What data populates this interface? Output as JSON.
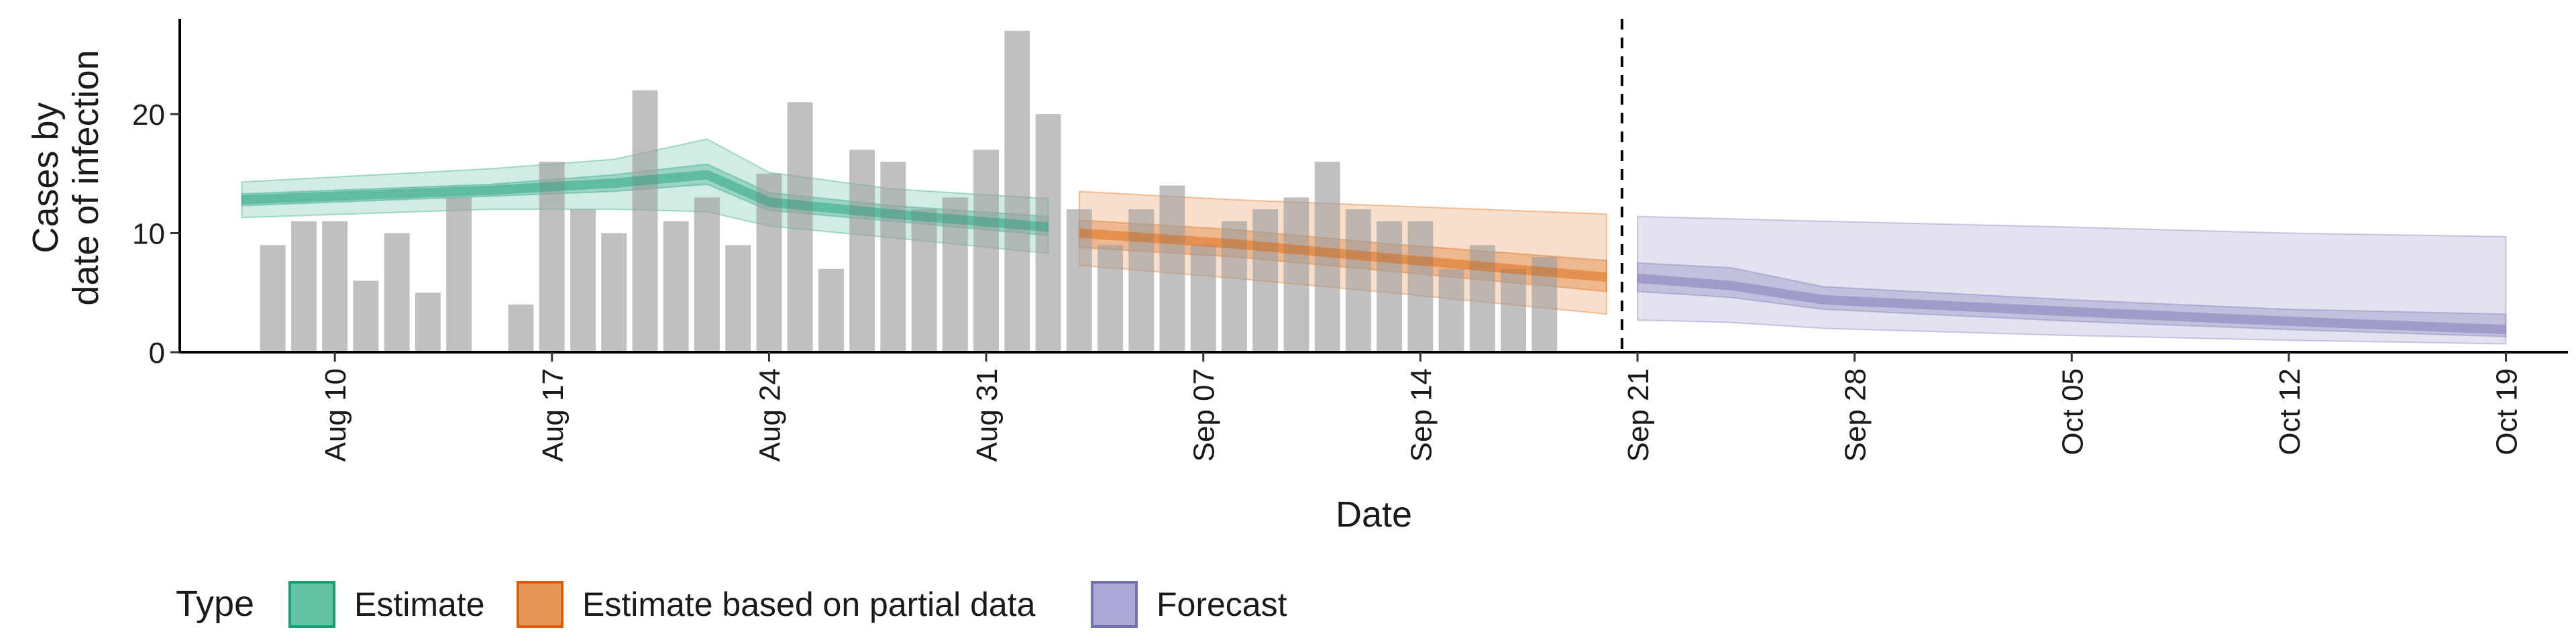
{
  "chart_data": {
    "type": "bar",
    "title": "",
    "xlabel": "Date",
    "ylabel_line1": "Cases by",
    "ylabel_line2": "date of infection",
    "ylim": [
      0,
      28
    ],
    "y_ticks": [
      0,
      10,
      20
    ],
    "x_range": [
      "2020-08-05",
      "2020-10-21"
    ],
    "x_ticks": [
      {
        "date": "2020-08-10",
        "label": "Aug 10"
      },
      {
        "date": "2020-08-17",
        "label": "Aug 17"
      },
      {
        "date": "2020-08-24",
        "label": "Aug 24"
      },
      {
        "date": "2020-08-31",
        "label": "Aug 31"
      },
      {
        "date": "2020-09-07",
        "label": "Sep 07"
      },
      {
        "date": "2020-09-14",
        "label": "Sep 14"
      },
      {
        "date": "2020-09-21",
        "label": "Sep 21"
      },
      {
        "date": "2020-09-28",
        "label": "Sep 28"
      },
      {
        "date": "2020-10-05",
        "label": "Oct 05"
      },
      {
        "date": "2020-10-12",
        "label": "Oct 12"
      },
      {
        "date": "2020-10-19",
        "label": "Oct 19"
      }
    ],
    "forecast_start": "2020-09-20",
    "bars": {
      "start_date": "2020-08-08",
      "values": [
        9,
        11,
        11,
        6,
        10,
        5,
        13,
        0,
        4,
        16,
        12,
        10,
        22,
        11,
        13,
        9,
        15,
        21,
        7,
        17,
        16,
        12,
        13,
        17,
        27,
        20,
        12,
        9,
        12,
        14,
        9,
        11,
        12,
        13,
        16,
        12,
        11,
        11,
        7,
        9,
        7,
        8
      ]
    },
    "legend": {
      "title": "Type",
      "position": "bottom",
      "items": [
        {
          "label": "Estimate",
          "fill": "#66c2a5",
          "stroke": "#1b9e77"
        },
        {
          "label": "Estimate based on partial data",
          "fill": "#e8955a",
          "stroke": "#d95f02"
        },
        {
          "label": "Forecast",
          "fill": "#a9a8d6",
          "stroke": "#7570b3"
        }
      ]
    },
    "series": [
      {
        "type": "Estimate",
        "color": "#1b9e77",
        "points": [
          {
            "date": "2020-08-07",
            "median": 12.8,
            "l50": 12.3,
            "u50": 13.3,
            "l90": 11.3,
            "u90": 14.3
          },
          {
            "date": "2020-08-15",
            "median": 13.6,
            "l50": 13.1,
            "u50": 14.1,
            "l90": 12.0,
            "u90": 15.4
          },
          {
            "date": "2020-08-19",
            "median": 14.2,
            "l50": 13.5,
            "u50": 14.9,
            "l90": 12.0,
            "u90": 16.2
          },
          {
            "date": "2020-08-22",
            "median": 14.9,
            "l50": 14.1,
            "u50": 15.8,
            "l90": 11.8,
            "u90": 17.9
          },
          {
            "date": "2020-08-24",
            "median": 12.6,
            "l50": 11.9,
            "u50": 13.4,
            "l90": 10.6,
            "u90": 15.1
          },
          {
            "date": "2020-08-28",
            "median": 11.6,
            "l50": 11.0,
            "u50": 12.3,
            "l90": 9.6,
            "u90": 13.7
          },
          {
            "date": "2020-09-02",
            "median": 10.5,
            "l50": 9.8,
            "u50": 11.4,
            "l90": 8.3,
            "u90": 12.9
          }
        ]
      },
      {
        "type": "Estimate based on partial data",
        "color": "#d95f02",
        "points": [
          {
            "date": "2020-09-03",
            "median": 10.0,
            "l50": 8.8,
            "u50": 11.1,
            "l90": 7.3,
            "u90": 13.5
          },
          {
            "date": "2020-09-08",
            "median": 9.1,
            "l50": 8.0,
            "u50": 10.3,
            "l90": 6.2,
            "u90": 12.8
          },
          {
            "date": "2020-09-13",
            "median": 7.9,
            "l50": 6.8,
            "u50": 9.1,
            "l90": 5.0,
            "u90": 12.3
          },
          {
            "date": "2020-09-20",
            "median": 6.3,
            "l50": 5.1,
            "u50": 7.7,
            "l90": 3.2,
            "u90": 11.6
          }
        ]
      },
      {
        "type": "Forecast",
        "color": "#7570b3",
        "points": [
          {
            "date": "2020-09-21",
            "median": 6.2,
            "l50": 5.1,
            "u50": 7.5,
            "l90": 2.7,
            "u90": 11.4
          },
          {
            "date": "2020-09-24",
            "median": 5.6,
            "l50": 4.6,
            "u50": 7.1,
            "l90": 2.5,
            "u90": 11.2
          },
          {
            "date": "2020-09-27",
            "median": 4.4,
            "l50": 3.6,
            "u50": 5.5,
            "l90": 2.0,
            "u90": 11.0
          },
          {
            "date": "2020-10-05",
            "median": 3.4,
            "l50": 2.6,
            "u50": 4.4,
            "l90": 1.4,
            "u90": 10.5
          },
          {
            "date": "2020-10-12",
            "median": 2.6,
            "l50": 1.9,
            "u50": 3.6,
            "l90": 1.0,
            "u90": 10.0
          },
          {
            "date": "2020-10-19",
            "median": 1.9,
            "l50": 1.3,
            "u50": 3.2,
            "l90": 0.7,
            "u90": 9.7
          }
        ]
      }
    ]
  }
}
